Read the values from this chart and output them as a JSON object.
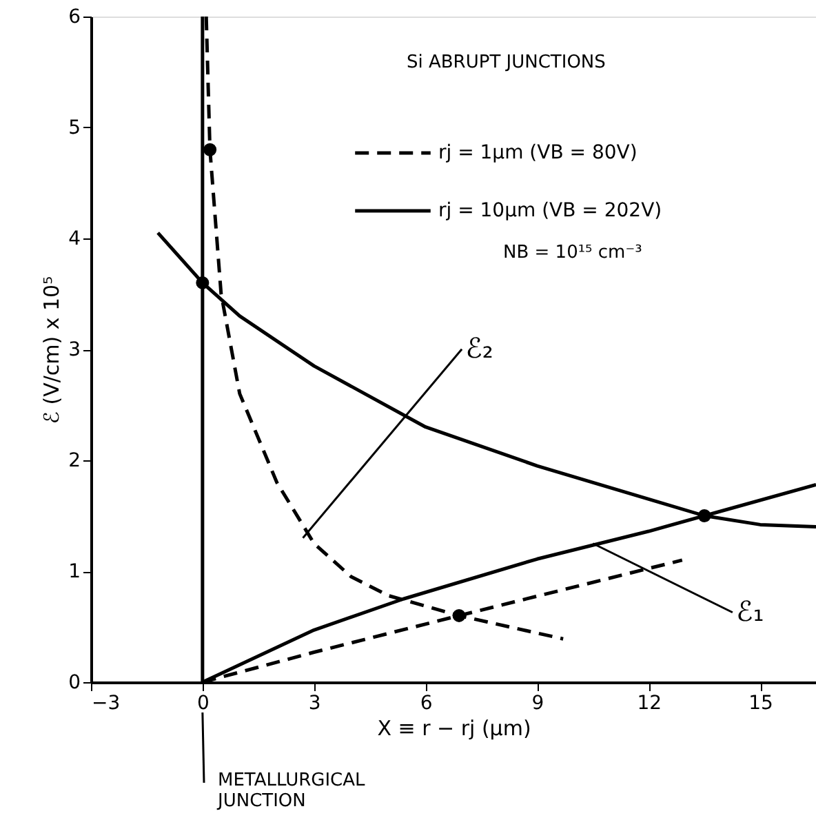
{
  "chart_data": {
    "type": "line",
    "xlabel": "X ≡ r − rj (μm)",
    "ylabel": "ℰ (V/cm) x 10⁵",
    "xlim": [
      -3,
      16.5
    ],
    "xticks": [
      -3,
      0,
      3,
      6,
      9,
      12,
      15
    ],
    "ylim": [
      0,
      6
    ],
    "yticks": [
      0,
      1,
      2,
      3,
      4,
      5,
      6
    ],
    "grid": false,
    "legend": "top right",
    "series": [
      {
        "name": "rj = 1μm (VB = 80V)",
        "color": "#000000",
        "line_style": "dashed",
        "x": [
          0.1,
          0.2,
          0.5,
          1,
          2,
          3,
          4,
          5,
          6.9,
          9.7
        ],
        "values": [
          6,
          4.8,
          3.5,
          2.6,
          1.8,
          1.25,
          0.95,
          0.78,
          0.6,
          0.39
        ]
      },
      {
        "color": "#000000",
        "line_style": "dashed",
        "x": [
          0,
          3,
          6.9,
          12.9
        ],
        "values": [
          0,
          0.27,
          0.6,
          1.1
        ]
      },
      {
        "name": "rj = 10μm (VB = 202V)",
        "color": "#000000",
        "line_style": "solid",
        "x": [
          -1.2,
          0,
          1,
          3,
          6,
          9,
          12,
          13.5,
          15,
          16.5
        ],
        "values": [
          4.05,
          3.6,
          3.3,
          2.85,
          2.3,
          1.95,
          1.65,
          1.5,
          1.42,
          1.4
        ]
      },
      {
        "color": "#000000",
        "line_style": "solid",
        "x": [
          0,
          3,
          5.4,
          9,
          12,
          13.5,
          16.5
        ],
        "values": [
          0,
          0.47,
          0.75,
          1.11,
          1.36,
          1.5,
          1.78
        ]
      },
      {
        "type": "scatter",
        "color": "#000000",
        "marker": "circle",
        "x": [
          0,
          13.5,
          0.2,
          6.9
        ],
        "values": [
          3.6,
          1.5,
          4.8,
          0.6
        ]
      }
    ],
    "ref_lines": [
      {
        "axis": "x",
        "value": 0,
        "color": "#000000",
        "line_style": "solid"
      }
    ],
    "annotations": [
      "Si ABRUPT JUNCTIONS",
      "NB = 10¹⁵ cm⁻³",
      {
        "text": "ℰ₂",
        "x": 2.7,
        "y": 1.3
      },
      {
        "text": "ℰ₁",
        "x": 10.5,
        "y": 1.25
      },
      "METALLURGICAL JUNCTION"
    ]
  }
}
